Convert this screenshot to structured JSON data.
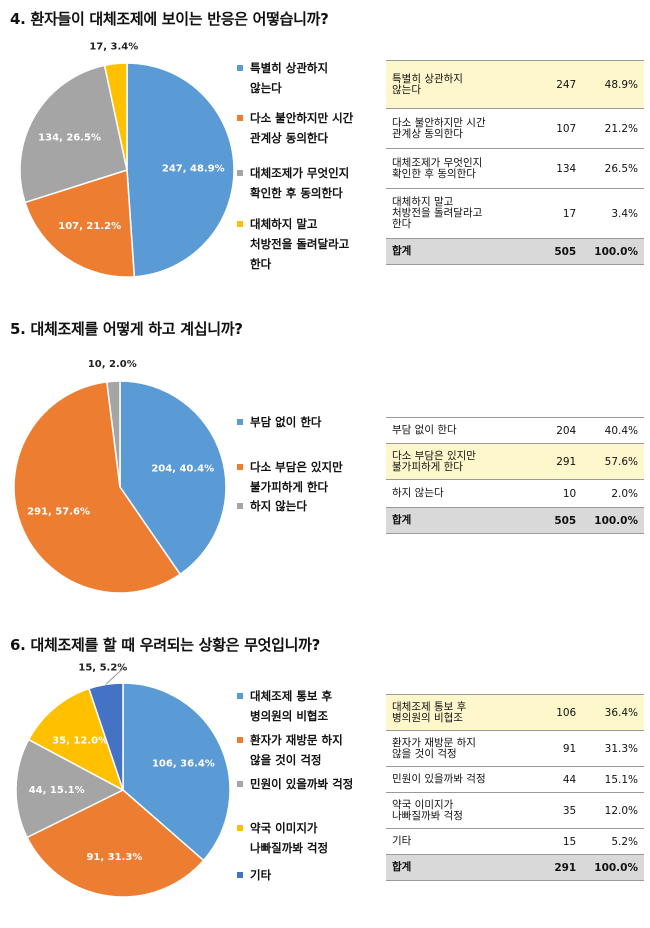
{
  "colors": {
    "blue": "#5b9bd5",
    "orange": "#ed7d31",
    "gray": "#a5a5a5",
    "yellow": "#ffc000",
    "darkblue": "#4472c4"
  },
  "questions": [
    {
      "title": "4. 환자들이 대체조제에 보이는 반응은 어떻습니까?",
      "legend": [
        "특별히 상관하지\n않는다",
        "다소 불안하지만 시간\n관계상 동의한다",
        "대체조제가 무엇인지\n확인한 후 동의한다",
        "대체하지 말고\n처방전을 돌려달라고\n한다"
      ],
      "table": [
        {
          "label": "특별히 상관하지\n않는다",
          "count": "247",
          "pct": "48.9%",
          "highlight": true
        },
        {
          "label": "다소 불안하지만 시간\n관계상 동의한다",
          "count": "107",
          "pct": "21.2%",
          "highlight": false
        },
        {
          "label": "대체조제가 무엇인지\n확인한 후 동의한다",
          "count": "134",
          "pct": "26.5%",
          "highlight": false
        },
        {
          "label": "대체하지 말고\n처방전을 돌려달라고\n한다",
          "count": "17",
          "pct": "3.4%",
          "highlight": false
        }
      ],
      "total": {
        "label": "합계",
        "count": "505",
        "pct": "100.0%"
      }
    },
    {
      "title": "5. 대체조제를 어떻게 하고 계십니까?",
      "legend": [
        "부담 없이 한다",
        "다소 부담은 있지만\n불가피하게 한다",
        "하지 않는다"
      ],
      "table": [
        {
          "label": "부담 없이 한다",
          "count": "204",
          "pct": "40.4%",
          "highlight": false
        },
        {
          "label": "다소 부담은 있지만\n불가피하게 한다",
          "count": "291",
          "pct": "57.6%",
          "highlight": true
        },
        {
          "label": "하지 않는다",
          "count": "10",
          "pct": "2.0%",
          "highlight": false
        }
      ],
      "total": {
        "label": "합계",
        "count": "505",
        "pct": "100.0%"
      }
    },
    {
      "title": "6. 대체조제를 할 때 우려되는 상황은 무엇입니까?",
      "legend": [
        "대체조제 통보 후\n병의원의 비협조",
        "환자가 재방문 하지\n않을 것이 걱정",
        "민원이 있을까봐 걱정",
        "약국 이미지가\n나빠질까봐 걱정",
        "기타"
      ],
      "table": [
        {
          "label": "대체조제 통보 후\n병의원의 비협조",
          "count": "106",
          "pct": "36.4%",
          "highlight": true
        },
        {
          "label": "환자가 재방문 하지\n않을 것이 걱정",
          "count": "91",
          "pct": "31.3%",
          "highlight": false
        },
        {
          "label": "민원이 있을까봐 걱정",
          "count": "44",
          "pct": "15.1%",
          "highlight": false
        },
        {
          "label": "약국 이미지가\n나빠질까봐 걱정",
          "count": "35",
          "pct": "12.0%",
          "highlight": false
        },
        {
          "label": "기타",
          "count": "15",
          "pct": "5.2%",
          "highlight": false
        }
      ],
      "total": {
        "label": "합계",
        "count": "291",
        "pct": "100.0%"
      }
    }
  ],
  "chart_data": [
    {
      "type": "pie",
      "title": "4. 환자들이 대체조제에 보이는 반응은 어떻습니까?",
      "categories": [
        "특별히 상관하지 않는다",
        "다소 불안하지만 시간 관계상 동의한다",
        "대체조제가 무엇인지 확인한 후 동의한다",
        "대체하지 말고 처방전을 돌려달라고 한다"
      ],
      "values": [
        247,
        107,
        134,
        17
      ],
      "percents": [
        48.9,
        21.2,
        26.5,
        3.4
      ],
      "data_labels": [
        "247, 48.9%",
        "107, 21.2%",
        "134, 26.5%",
        "17, 3.4%"
      ],
      "colors": [
        "#5b9bd5",
        "#ed7d31",
        "#a5a5a5",
        "#ffc000"
      ],
      "legend": "right"
    },
    {
      "type": "pie",
      "title": "5. 대체조제를 어떻게 하고 계십니까?",
      "categories": [
        "부담 없이 한다",
        "다소 부담은 있지만 불가피하게 한다",
        "하지 않는다"
      ],
      "values": [
        204,
        291,
        10
      ],
      "percents": [
        40.4,
        57.6,
        2.0
      ],
      "data_labels": [
        "204, 40.4%",
        "291, 57.6%",
        "10, 2.0%"
      ],
      "colors": [
        "#5b9bd5",
        "#ed7d31",
        "#a5a5a5"
      ],
      "legend": "right"
    },
    {
      "type": "pie",
      "title": "6. 대체조제를 할 때 우려되는 상황은 무엇입니까?",
      "categories": [
        "대체조제 통보 후 병의원의 비협조",
        "환자가 재방문 하지 않을 것이 걱정",
        "민원이 있을까봐 걱정",
        "약국 이미지가 나빠질까봐 걱정",
        "기타"
      ],
      "values": [
        106,
        91,
        44,
        35,
        15
      ],
      "percents": [
        36.4,
        31.3,
        15.1,
        12.0,
        5.2
      ],
      "data_labels": [
        "106, 36.4%",
        "91, 31.3%",
        "44, 15.1%",
        "35, 12.0%",
        "15, 5.2%"
      ],
      "colors": [
        "#5b9bd5",
        "#ed7d31",
        "#a5a5a5",
        "#ffc000",
        "#4472c4"
      ],
      "legend": "right"
    }
  ]
}
